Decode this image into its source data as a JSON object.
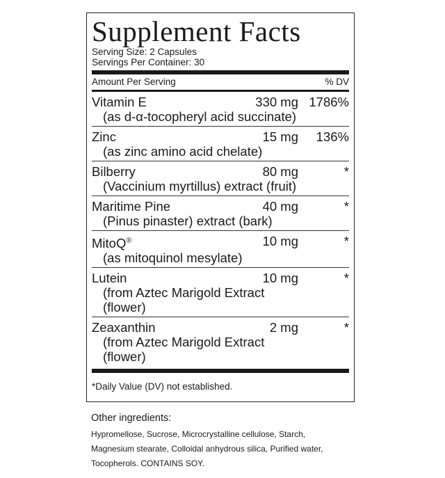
{
  "label": {
    "title": "Supplement Facts",
    "serving_size": "Serving Size: 2 Capsules",
    "servings_per_container": "Servings Per Container: 30",
    "header_amount": "Amount Per Serving",
    "header_dv": "% DV",
    "rows": [
      {
        "name": "Vitamin E",
        "amount": "330 mg",
        "dv": "1786%",
        "sub": [
          "(as d-α-tocopheryl acid succinate)"
        ]
      },
      {
        "name": "Zinc",
        "amount": "15 mg",
        "dv": "136%",
        "sub": [
          "(as zinc amino acid chelate)"
        ]
      },
      {
        "name": "Bilberry",
        "amount": "80 mg",
        "dv": "*",
        "sub": [
          "(Vaccinium myrtillus) extract (fruit)"
        ]
      },
      {
        "name": "Maritime Pine",
        "amount": "40 mg",
        "dv": "*",
        "sub": [
          "(Pinus pinaster) extract (bark)"
        ]
      },
      {
        "name": "MitoQ",
        "mark": "®",
        "amount": "10 mg",
        "dv": "*",
        "sub": [
          "(as mitoquinol mesylate)"
        ]
      },
      {
        "name": "Lutein",
        "amount": "10 mg",
        "dv": "*",
        "sub": [
          "(from Aztec Marigold Extract",
          "(flower)"
        ]
      },
      {
        "name": "Zeaxanthin",
        "amount": "2 mg",
        "dv": "*",
        "sub": [
          "(from Aztec Marigold Extract",
          "(flower)"
        ]
      }
    ],
    "footnote": "*Daily Value (DV) not established."
  },
  "other": {
    "heading": "Other ingredients:",
    "lines": [
      "Hypromellose, Sucrose, Microcrystalline cellulose, Starch,",
      "Magnesium stearate, Colloidal anhydrous silica, Purified water,",
      "Tocopherols. CONTAINS SOY."
    ]
  }
}
